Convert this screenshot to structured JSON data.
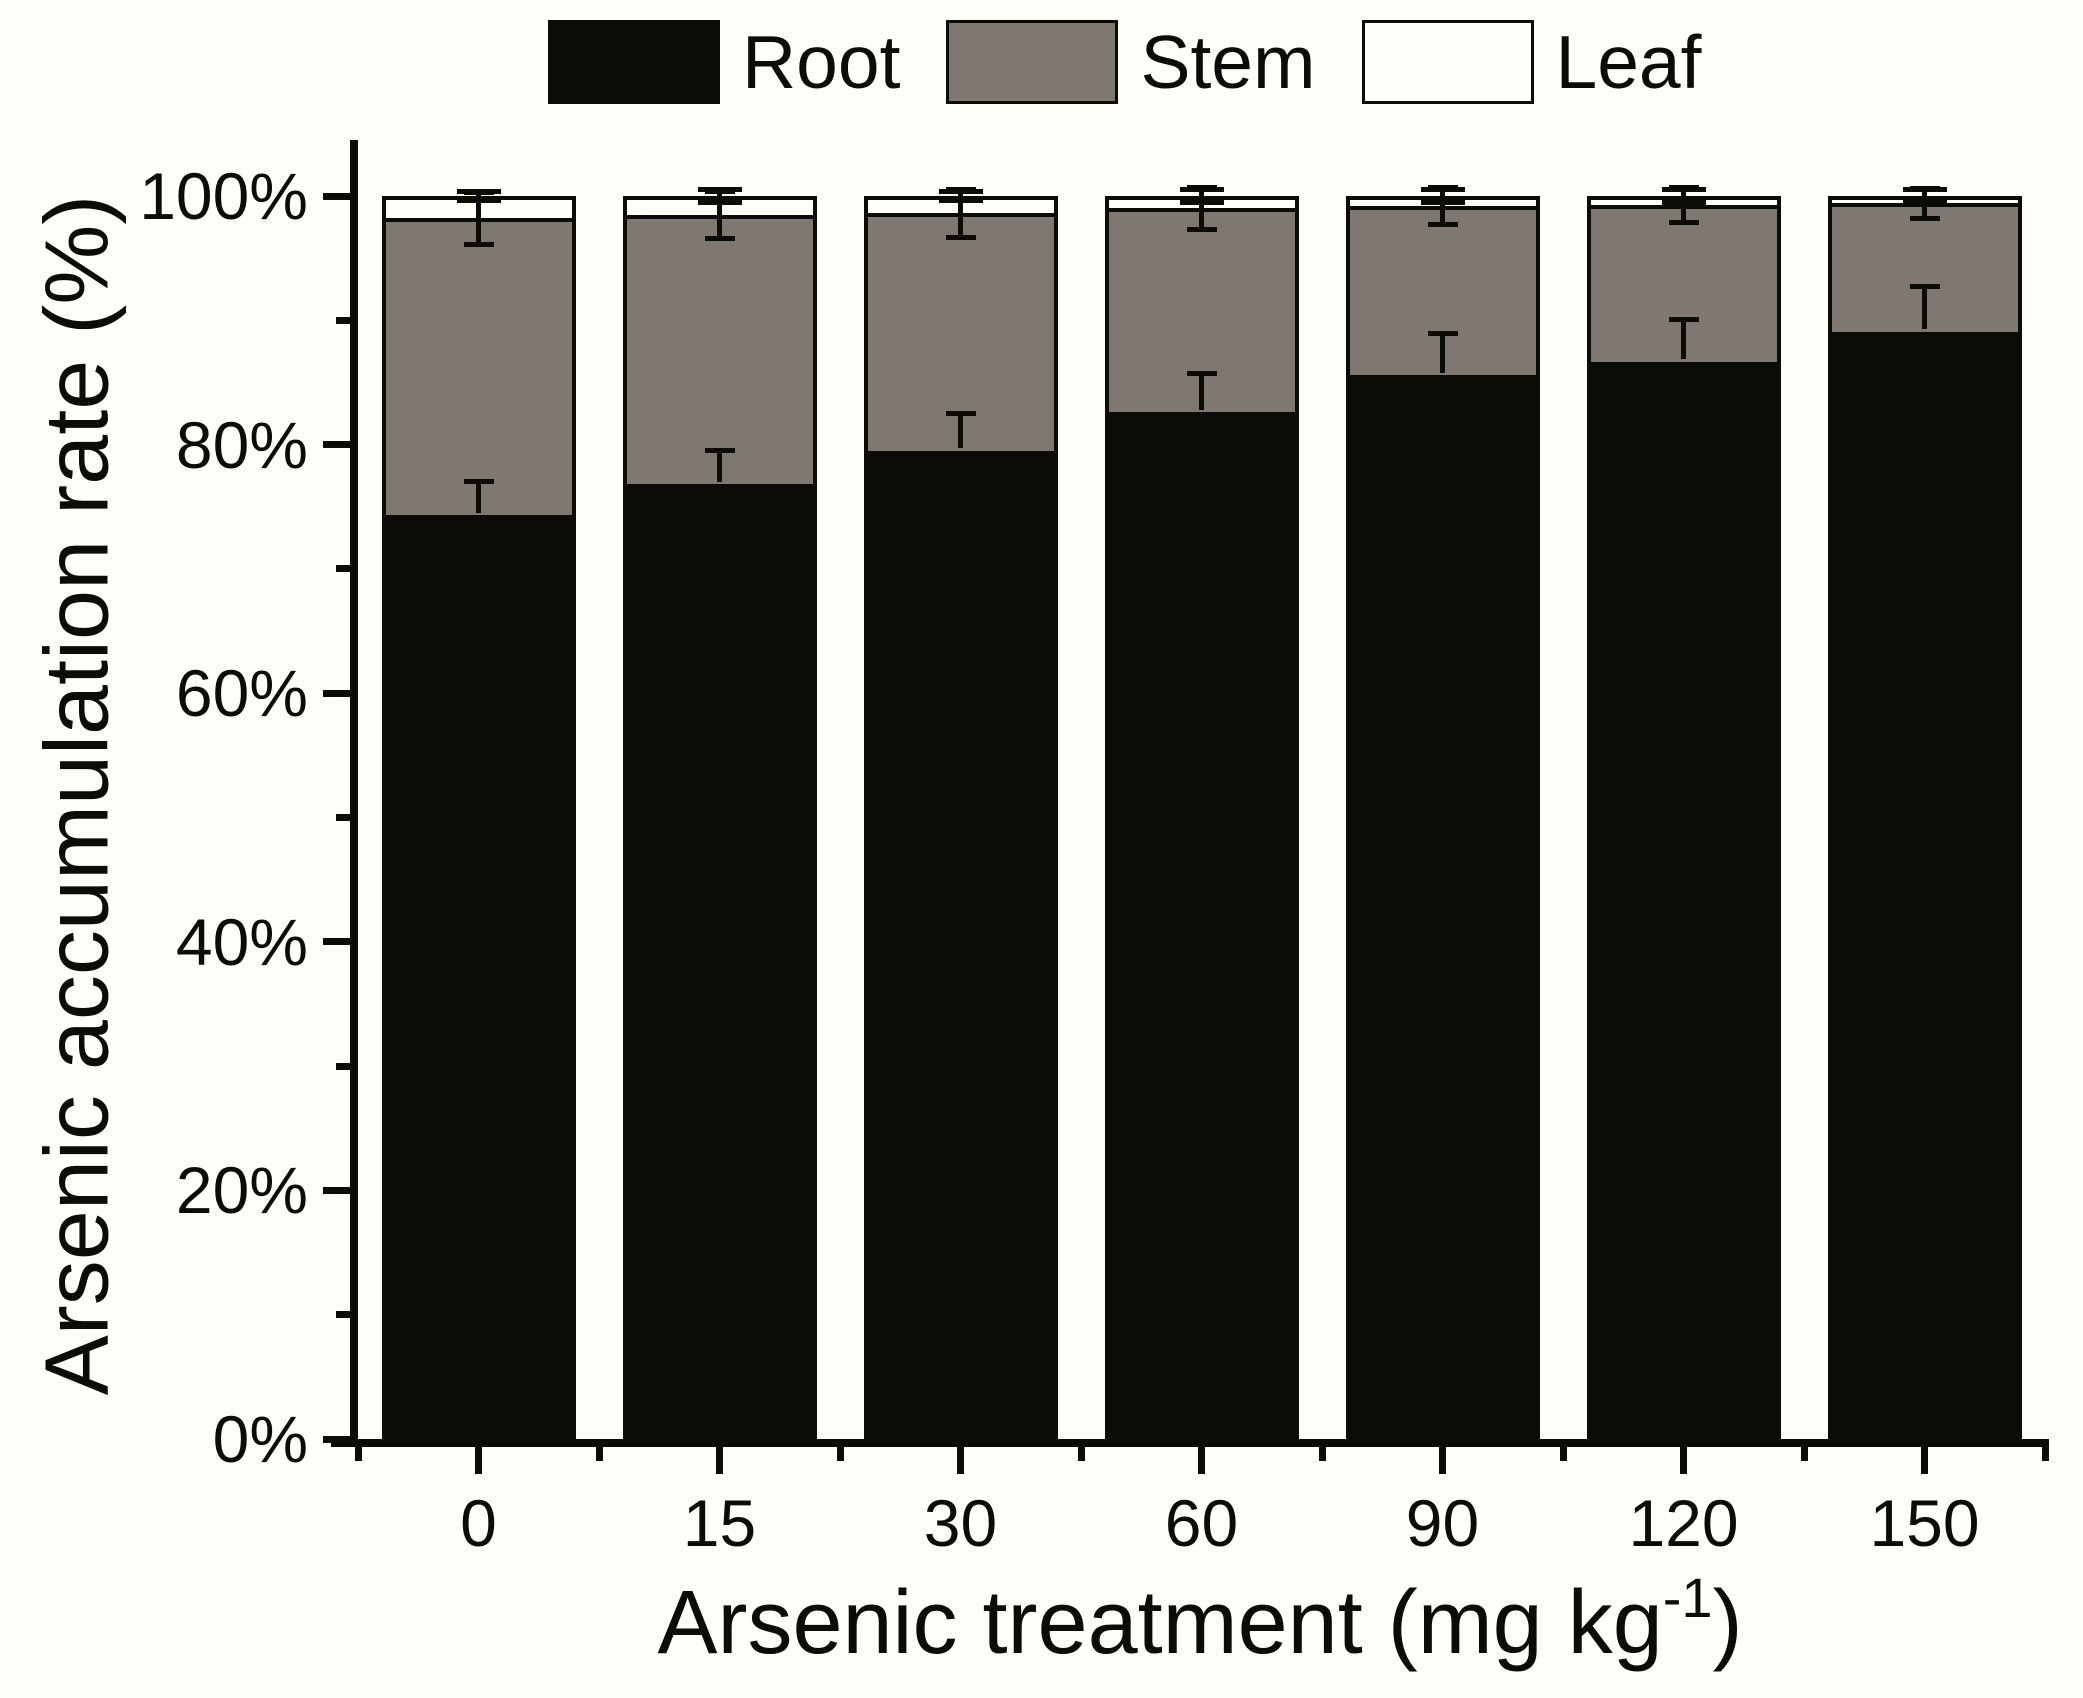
{
  "chart_data": {
    "type": "bar",
    "stacked": true,
    "orientation": "vertical",
    "categories": [
      "0",
      "15",
      "30",
      "60",
      "90",
      "120",
      "150"
    ],
    "series": [
      {
        "name": "Root",
        "color": "#0b0c08",
        "values": [
          74.5,
          77.0,
          79.7,
          82.8,
          85.8,
          86.9,
          89.3
        ],
        "errors": [
          2.5,
          2.5,
          2.8,
          2.9,
          3.1,
          3.2,
          3.4
        ]
      },
      {
        "name": "Stem",
        "color": "#7e7871",
        "values": [
          23.7,
          21.5,
          18.9,
          16.2,
          13.4,
          12.4,
          10.1
        ],
        "errors": [
          2.1,
          1.9,
          1.9,
          1.7,
          1.5,
          1.4,
          1.2
        ]
      },
      {
        "name": "Leaf",
        "color": "#fffefa",
        "values": [
          1.8,
          1.5,
          1.4,
          1.0,
          0.8,
          0.7,
          0.6
        ],
        "errors": [
          0.4,
          0.5,
          0.4,
          0.5,
          0.5,
          0.5,
          0.5
        ]
      }
    ],
    "error_bars": "at top of each cumulative segment boundary, black, capped",
    "ylabel": "Arsenic accumulation rate (%)",
    "xlabel": {
      "pre": "Arsenic treatment (mg kg",
      "sup": "-1",
      "post": ")"
    },
    "ylim": [
      0,
      100
    ],
    "yticks_major": [
      0,
      20,
      40,
      60,
      80,
      100
    ],
    "yticks_minor": [
      10,
      30,
      50,
      70,
      90
    ],
    "ytick_labels": [
      "0%",
      "20%",
      "40%",
      "60%",
      "80%",
      "100%"
    ],
    "xtick_labels": [
      "0",
      "15",
      "30",
      "60",
      "90",
      "120",
      "150"
    ],
    "legend_position": "top-center",
    "grid": false,
    "background_color": "#fffef9",
    "axis_color": "#0b0c08"
  }
}
